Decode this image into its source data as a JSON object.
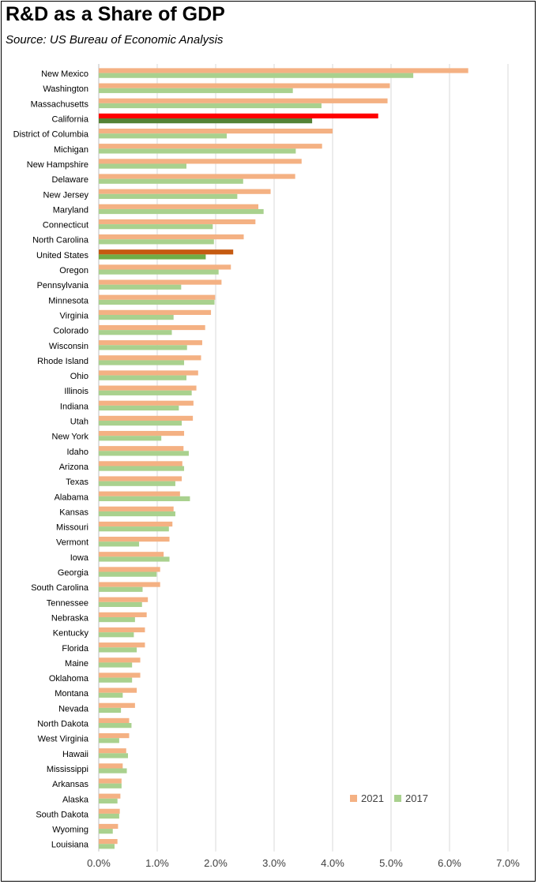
{
  "title": "R&D as a Share of GDP",
  "subtitle": "Source:  US Bureau of Economic Analysis",
  "chart_data": {
    "type": "bar",
    "orientation": "horizontal",
    "categories": [
      "New Mexico",
      "Washington",
      "Massachusetts",
      "California",
      "District of Columbia",
      "Michigan",
      "New Hampshire",
      "Delaware",
      "New Jersey",
      "Maryland",
      "Connecticut",
      "North Carolina",
      "United States",
      "Oregon",
      "Pennsylvania",
      "Minnesota",
      "Virginia",
      "Colorado",
      "Wisconsin",
      "Rhode Island",
      "Ohio",
      "Illinois",
      "Indiana",
      "Utah",
      "New York",
      "Idaho",
      "Arizona",
      "Texas",
      "Alabama",
      "Kansas",
      "Missouri",
      "Vermont",
      "Iowa",
      "Georgia",
      "South Carolina",
      "Tennessee",
      "Nebraska",
      "Kentucky",
      "Florida",
      "Maine",
      "Oklahoma",
      "Montana",
      "Nevada",
      "North Dakota",
      "West Virginia",
      "Hawaii",
      "Mississippi",
      "Arkansas",
      "Alaska",
      "South Dakota",
      "Wyoming",
      "Louisiana"
    ],
    "series": [
      {
        "name": "2021",
        "color": "#F4B183",
        "highlight": {
          "California": "#FF0000",
          "United States": "#C55A11"
        },
        "values": [
          6.32,
          4.98,
          4.94,
          4.78,
          4.0,
          3.82,
          3.47,
          3.36,
          2.94,
          2.73,
          2.68,
          2.48,
          2.3,
          2.26,
          2.1,
          1.99,
          1.92,
          1.82,
          1.77,
          1.75,
          1.7,
          1.67,
          1.62,
          1.61,
          1.46,
          1.45,
          1.43,
          1.42,
          1.39,
          1.28,
          1.26,
          1.21,
          1.11,
          1.05,
          1.05,
          0.84,
          0.82,
          0.79,
          0.79,
          0.71,
          0.71,
          0.65,
          0.62,
          0.52,
          0.52,
          0.47,
          0.41,
          0.39,
          0.37,
          0.36,
          0.33,
          0.32
        ]
      },
      {
        "name": "2017",
        "color": "#A9D18E",
        "highlight": {
          "California": "#548235",
          "United States": "#70AD47"
        },
        "values": [
          5.38,
          3.32,
          3.81,
          3.65,
          2.19,
          3.37,
          1.5,
          2.47,
          2.37,
          2.82,
          1.95,
          1.97,
          1.83,
          2.05,
          1.41,
          1.98,
          1.28,
          1.25,
          1.51,
          1.46,
          1.5,
          1.59,
          1.37,
          1.42,
          1.07,
          1.54,
          1.46,
          1.31,
          1.56,
          1.31,
          1.2,
          0.69,
          1.21,
          0.99,
          0.75,
          0.74,
          0.62,
          0.6,
          0.65,
          0.57,
          0.57,
          0.41,
          0.38,
          0.56,
          0.35,
          0.5,
          0.48,
          0.39,
          0.32,
          0.35,
          0.24,
          0.27
        ]
      }
    ],
    "x_ticks": [
      "0.0%",
      "1.0%",
      "2.0%",
      "3.0%",
      "4.0%",
      "5.0%",
      "6.0%",
      "7.0%"
    ],
    "xlim": [
      0,
      7
    ],
    "grid": "vertical",
    "legend": "bottom-right"
  }
}
